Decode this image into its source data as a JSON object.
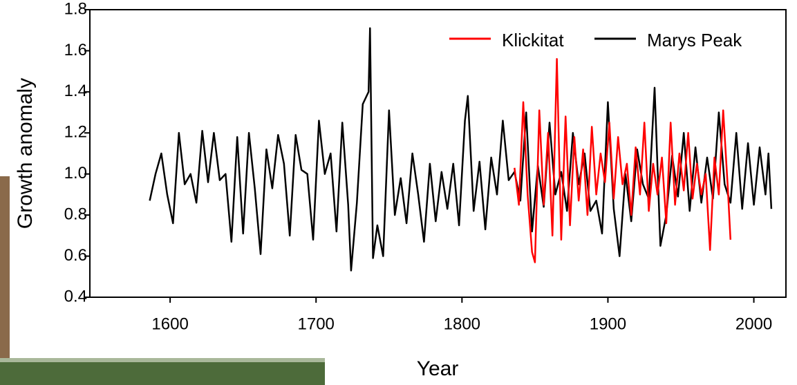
{
  "chart_data": {
    "type": "line",
    "x_label": "Year",
    "y_label": "Growth anomaly",
    "xlim": [
      1545,
      2022
    ],
    "xticks": [
      1600,
      1700,
      1800,
      1900,
      2000
    ],
    "ylim": [
      0.4,
      1.8
    ],
    "yticks": [
      {
        "value": 0.4,
        "label": "0.4"
      },
      {
        "value": 0.6,
        "label": "0.6"
      },
      {
        "value": 0.8,
        "label": "0.8"
      },
      {
        "value": 1,
        "label": "1.0"
      },
      {
        "value": 1.2,
        "label": "1.2"
      },
      {
        "value": 1.4,
        "label": "1.4"
      },
      {
        "value": 1.6,
        "label": "1.6"
      },
      {
        "value": 1.8,
        "label": "1.8"
      }
    ],
    "series": [
      {
        "name": "Marys Peak",
        "color": "#000000",
        "x": [
          1586,
          1590,
          1594,
          1598,
          1602,
          1606,
          1610,
          1614,
          1618,
          1622,
          1626,
          1630,
          1634,
          1638,
          1642,
          1646,
          1650,
          1654,
          1658,
          1662,
          1666,
          1670,
          1674,
          1678,
          1682,
          1686,
          1690,
          1694,
          1698,
          1702,
          1706,
          1710,
          1714,
          1718,
          1722,
          1724,
          1728,
          1732,
          1736,
          1737,
          1739,
          1742,
          1746,
          1750,
          1754,
          1758,
          1762,
          1766,
          1770,
          1774,
          1778,
          1782,
          1786,
          1790,
          1794,
          1798,
          1802,
          1804,
          1808,
          1812,
          1816,
          1820,
          1824,
          1828,
          1832,
          1836,
          1840,
          1844,
          1848,
          1852,
          1856,
          1860,
          1864,
          1868,
          1872,
          1876,
          1880,
          1884,
          1888,
          1892,
          1896,
          1900,
          1904,
          1908,
          1912,
          1916,
          1920,
          1924,
          1928,
          1932,
          1936,
          1940,
          1944,
          1948,
          1952,
          1956,
          1960,
          1964,
          1968,
          1972,
          1976,
          1980,
          1984,
          1988,
          1992,
          1996,
          2000,
          2004,
          2008,
          2010,
          2012
        ],
        "values": [
          0.87,
          1.0,
          1.1,
          0.9,
          0.76,
          1.2,
          0.95,
          1.0,
          0.86,
          1.21,
          0.96,
          1.2,
          0.97,
          1.0,
          0.67,
          1.18,
          0.71,
          1.2,
          0.93,
          0.61,
          1.12,
          0.93,
          1.19,
          1.05,
          0.7,
          1.19,
          1.02,
          1.0,
          0.68,
          1.26,
          1.0,
          1.1,
          0.72,
          1.25,
          0.85,
          0.53,
          0.86,
          1.34,
          1.4,
          1.71,
          0.59,
          0.75,
          0.6,
          1.31,
          0.8,
          0.98,
          0.76,
          1.1,
          0.9,
          0.67,
          1.05,
          0.77,
          1.01,
          0.83,
          1.05,
          0.75,
          1.26,
          1.38,
          0.82,
          1.06,
          0.73,
          1.08,
          0.9,
          1.26,
          0.97,
          1.01,
          0.87,
          1.3,
          0.72,
          1.04,
          0.84,
          1.25,
          0.9,
          1.01,
          0.82,
          1.2,
          0.95,
          1.1,
          0.82,
          0.87,
          0.71,
          1.35,
          0.83,
          0.6,
          1.0,
          0.77,
          1.12,
          0.95,
          0.88,
          1.42,
          0.65,
          0.8,
          1.09,
          0.89,
          1.2,
          0.82,
          1.13,
          0.86,
          1.08,
          0.88,
          1.3,
          0.95,
          0.86,
          1.2,
          0.83,
          1.15,
          0.85,
          1.13,
          0.9,
          1.1,
          0.83
        ]
      },
      {
        "name": "Klickitat",
        "color": "#ff0000",
        "x": [
          1836,
          1839,
          1842,
          1845,
          1848,
          1850,
          1853,
          1856,
          1859,
          1862,
          1865,
          1868,
          1871,
          1874,
          1877,
          1880,
          1883,
          1886,
          1889,
          1892,
          1895,
          1898,
          1901,
          1904,
          1907,
          1910,
          1913,
          1916,
          1919,
          1922,
          1925,
          1928,
          1931,
          1934,
          1937,
          1940,
          1943,
          1946,
          1949,
          1952,
          1955,
          1958,
          1961,
          1964,
          1967,
          1970,
          1973,
          1976,
          1979,
          1982,
          1984
        ],
        "values": [
          1.03,
          0.85,
          1.35,
          0.9,
          0.62,
          0.57,
          1.31,
          0.85,
          1.2,
          0.7,
          1.56,
          0.68,
          1.28,
          0.75,
          1.18,
          0.87,
          1.12,
          0.8,
          1.23,
          0.9,
          1.1,
          0.96,
          1.25,
          0.88,
          1.18,
          0.95,
          1.05,
          0.8,
          1.13,
          0.9,
          1.25,
          0.82,
          1.05,
          0.9,
          1.08,
          0.76,
          1.25,
          0.85,
          1.1,
          0.92,
          1.2,
          0.88,
          1.05,
          0.9,
          1.0,
          0.63,
          1.08,
          0.9,
          1.31,
          0.95,
          0.68
        ]
      }
    ]
  }
}
